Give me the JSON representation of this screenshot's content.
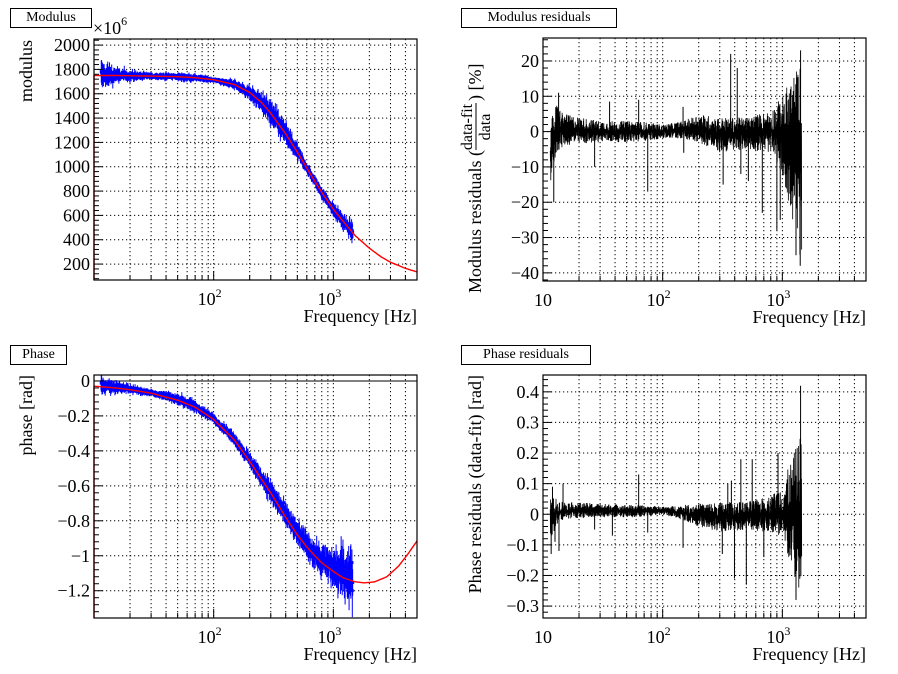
{
  "colors": {
    "data": "#0000ff",
    "fit": "#ff0000",
    "residual": "#000000",
    "grid": "#000000"
  },
  "chart_data": [
    {
      "id": "modulus",
      "type": "scatter",
      "title": "Modulus",
      "xlabel": "Frequency [Hz]",
      "ylabel": "modulus",
      "y_exponent_label": "×10",
      "y_exponent_power": "6",
      "xscale": "log",
      "xlim": [
        10,
        5000
      ],
      "ylim": [
        69,
        2050
      ],
      "grid": true,
      "x_tick_labels": [
        {
          "base": "10",
          "exp": "2",
          "value": 100
        },
        {
          "base": "10",
          "exp": "3",
          "value": 1000
        }
      ],
      "y_ticks": [
        200,
        400,
        600,
        800,
        1000,
        1200,
        1400,
        1600,
        1800,
        2000
      ],
      "y_tick_labels": [
        "200",
        "400",
        "600",
        "800",
        "1000",
        "1200",
        "1400",
        "1600",
        "1800",
        "2000"
      ],
      "data_range_hz": [
        11.5,
        1450
      ],
      "fit_curve": {
        "x": [
          10,
          15,
          20,
          30,
          50,
          70,
          100,
          150,
          200,
          250,
          300,
          400,
          500,
          600,
          700,
          800,
          1000,
          1200,
          1500,
          2000,
          2500,
          3000,
          4000,
          5000
        ],
        "y": [
          1750,
          1750,
          1748,
          1745,
          1740,
          1732,
          1715,
          1675,
          1610,
          1530,
          1440,
          1270,
          1120,
          990,
          880,
          790,
          650,
          555,
          440,
          330,
          260,
          215,
          165,
          135
        ]
      },
      "data_noise": {
        "x": [
          11.5,
          15,
          30,
          60,
          100,
          200,
          300,
          400,
          600,
          1000,
          1450
        ],
        "spread": [
          140,
          70,
          30,
          40,
          25,
          60,
          120,
          110,
          50,
          60,
          90
        ]
      }
    },
    {
      "id": "modulus-residuals",
      "type": "line",
      "title": "Modulus residuals",
      "xlabel": "Frequency [Hz]",
      "ylabel_prefix": "Modulus residuals (",
      "ylabel_num": "data-fit",
      "ylabel_den": "data",
      "ylabel_suffix": ") [%]",
      "xscale": "log",
      "xlim": [
        10,
        5000
      ],
      "ylim": [
        -42.3,
        26.5
      ],
      "grid": true,
      "x_tick_labels": [
        {
          "base": "10",
          "exp": "",
          "value": 10
        },
        {
          "base": "10",
          "exp": "2",
          "value": 100
        },
        {
          "base": "10",
          "exp": "3",
          "value": 1000
        }
      ],
      "y_ticks": [
        -40,
        -30,
        -20,
        -10,
        0,
        10,
        20
      ],
      "y_tick_labels": [
        "−40",
        "−30",
        "−20",
        "−10",
        "0",
        "10",
        "20"
      ],
      "data_range_hz": [
        11.5,
        1450
      ],
      "envelope": {
        "x": [
          11.5,
          13,
          15,
          30,
          60,
          100,
          150,
          200,
          300,
          500,
          800,
          1000,
          1200,
          1450
        ],
        "upper": [
          3,
          8,
          5,
          3,
          3,
          2,
          3,
          5,
          4,
          4,
          6,
          10,
          16,
          20
        ],
        "lower": [
          -15,
          -6,
          -4,
          -3,
          -3,
          -2,
          -2,
          -3,
          -6,
          -5,
          -6,
          -12,
          -25,
          -38
        ]
      },
      "spikes": [
        {
          "x": 12.3,
          "y": -20
        },
        {
          "x": 13.5,
          "y": 11
        },
        {
          "x": 27,
          "y": -10
        },
        {
          "x": 36,
          "y": 8.5
        },
        {
          "x": 63,
          "y": 9
        },
        {
          "x": 75,
          "y": -17
        },
        {
          "x": 148,
          "y": 7
        },
        {
          "x": 150,
          "y": -6
        },
        {
          "x": 320,
          "y": -15
        },
        {
          "x": 370,
          "y": 22
        },
        {
          "x": 420,
          "y": 18
        },
        {
          "x": 450,
          "y": -12
        },
        {
          "x": 520,
          "y": -14
        },
        {
          "x": 680,
          "y": -23
        },
        {
          "x": 900,
          "y": -28
        },
        {
          "x": 960,
          "y": -25
        },
        {
          "x": 1300,
          "y": -35
        },
        {
          "x": 1410,
          "y": -38
        },
        {
          "x": 1420,
          "y": 23
        }
      ]
    },
    {
      "id": "phase",
      "type": "scatter",
      "title": "Phase",
      "xlabel": "Frequency [Hz]",
      "ylabel": "phase [rad]",
      "xscale": "log",
      "xlim": [
        10,
        5000
      ],
      "ylim": [
        -1.356,
        0.034
      ],
      "grid": true,
      "zero_line": 0,
      "x_tick_labels": [
        {
          "base": "10",
          "exp": "2",
          "value": 100
        },
        {
          "base": "10",
          "exp": "3",
          "value": 1000
        }
      ],
      "y_ticks": [
        -1.2,
        -1,
        -0.8,
        -0.6,
        -0.4,
        -0.2,
        0
      ],
      "y_tick_labels": [
        "−1.2",
        "−1",
        "−0.8",
        "−0.6",
        "−0.4",
        "−0.2",
        "0"
      ],
      "data_range_hz": [
        11.5,
        1450
      ],
      "fit_curve": {
        "x": [
          10,
          15,
          20,
          30,
          50,
          70,
          100,
          150,
          200,
          250,
          300,
          400,
          500,
          600,
          700,
          800,
          1000,
          1200,
          1500,
          1800,
          2200,
          2800,
          3500,
          4200,
          5000
        ],
        "y": [
          -0.03,
          -0.04,
          -0.05,
          -0.07,
          -0.11,
          -0.15,
          -0.22,
          -0.34,
          -0.46,
          -0.56,
          -0.64,
          -0.78,
          -0.88,
          -0.95,
          -1.0,
          -1.04,
          -1.09,
          -1.125,
          -1.148,
          -1.155,
          -1.15,
          -1.12,
          -1.06,
          -0.99,
          -0.915
        ]
      },
      "data_noise": {
        "x": [
          11.5,
          15,
          30,
          60,
          100,
          200,
          300,
          500,
          800,
          1000,
          1450
        ],
        "spread": [
          0.06,
          0.04,
          0.02,
          0.04,
          0.03,
          0.05,
          0.07,
          0.08,
          0.09,
          0.12,
          0.2
        ]
      }
    },
    {
      "id": "phase-residuals",
      "type": "line",
      "title": "Phase residuals",
      "xlabel": "Frequency [Hz]",
      "ylabel": "Phase residuals (data-fit) [rad]",
      "xscale": "log",
      "xlim": [
        10,
        5000
      ],
      "ylim": [
        -0.339,
        0.455
      ],
      "grid": true,
      "x_tick_labels": [
        {
          "base": "10",
          "exp": "",
          "value": 10
        },
        {
          "base": "10",
          "exp": "2",
          "value": 100
        },
        {
          "base": "10",
          "exp": "3",
          "value": 1000
        }
      ],
      "y_ticks": [
        -0.3,
        -0.2,
        -0.1,
        0,
        0.1,
        0.2,
        0.3,
        0.4
      ],
      "y_tick_labels": [
        "−0.3",
        "−0.2",
        "−0.1",
        "0",
        "0.1",
        "0.2",
        "0.3",
        "0.4"
      ],
      "data_range_hz": [
        11.5,
        1450
      ],
      "envelope": {
        "x": [
          11.5,
          13,
          15,
          30,
          60,
          100,
          150,
          200,
          300,
          500,
          800,
          1000,
          1200,
          1450
        ],
        "upper": [
          0.06,
          0.05,
          0.04,
          0.035,
          0.03,
          0.025,
          0.03,
          0.035,
          0.04,
          0.04,
          0.06,
          0.1,
          0.18,
          0.27
        ],
        "lower": [
          -0.08,
          -0.04,
          -0.015,
          -0.01,
          -0.01,
          0.0,
          -0.02,
          -0.04,
          -0.06,
          -0.05,
          -0.06,
          -0.1,
          -0.18,
          -0.29
        ]
      },
      "spikes": [
        {
          "x": 11.7,
          "y": -0.13
        },
        {
          "x": 12,
          "y": 0.09
        },
        {
          "x": 12.6,
          "y": -0.09
        },
        {
          "x": 13.6,
          "y": -0.12
        },
        {
          "x": 14.7,
          "y": 0.1
        },
        {
          "x": 27,
          "y": -0.05
        },
        {
          "x": 38,
          "y": -0.07
        },
        {
          "x": 63,
          "y": 0.13
        },
        {
          "x": 75,
          "y": -0.06
        },
        {
          "x": 148,
          "y": -0.11
        },
        {
          "x": 315,
          "y": -0.13
        },
        {
          "x": 350,
          "y": 0.1
        },
        {
          "x": 375,
          "y": 0.11
        },
        {
          "x": 398,
          "y": -0.21
        },
        {
          "x": 450,
          "y": 0.18
        },
        {
          "x": 500,
          "y": -0.23
        },
        {
          "x": 560,
          "y": 0.18
        },
        {
          "x": 700,
          "y": -0.14
        },
        {
          "x": 920,
          "y": 0.2
        },
        {
          "x": 1300,
          "y": -0.28
        },
        {
          "x": 1420,
          "y": 0.42
        }
      ]
    }
  ]
}
